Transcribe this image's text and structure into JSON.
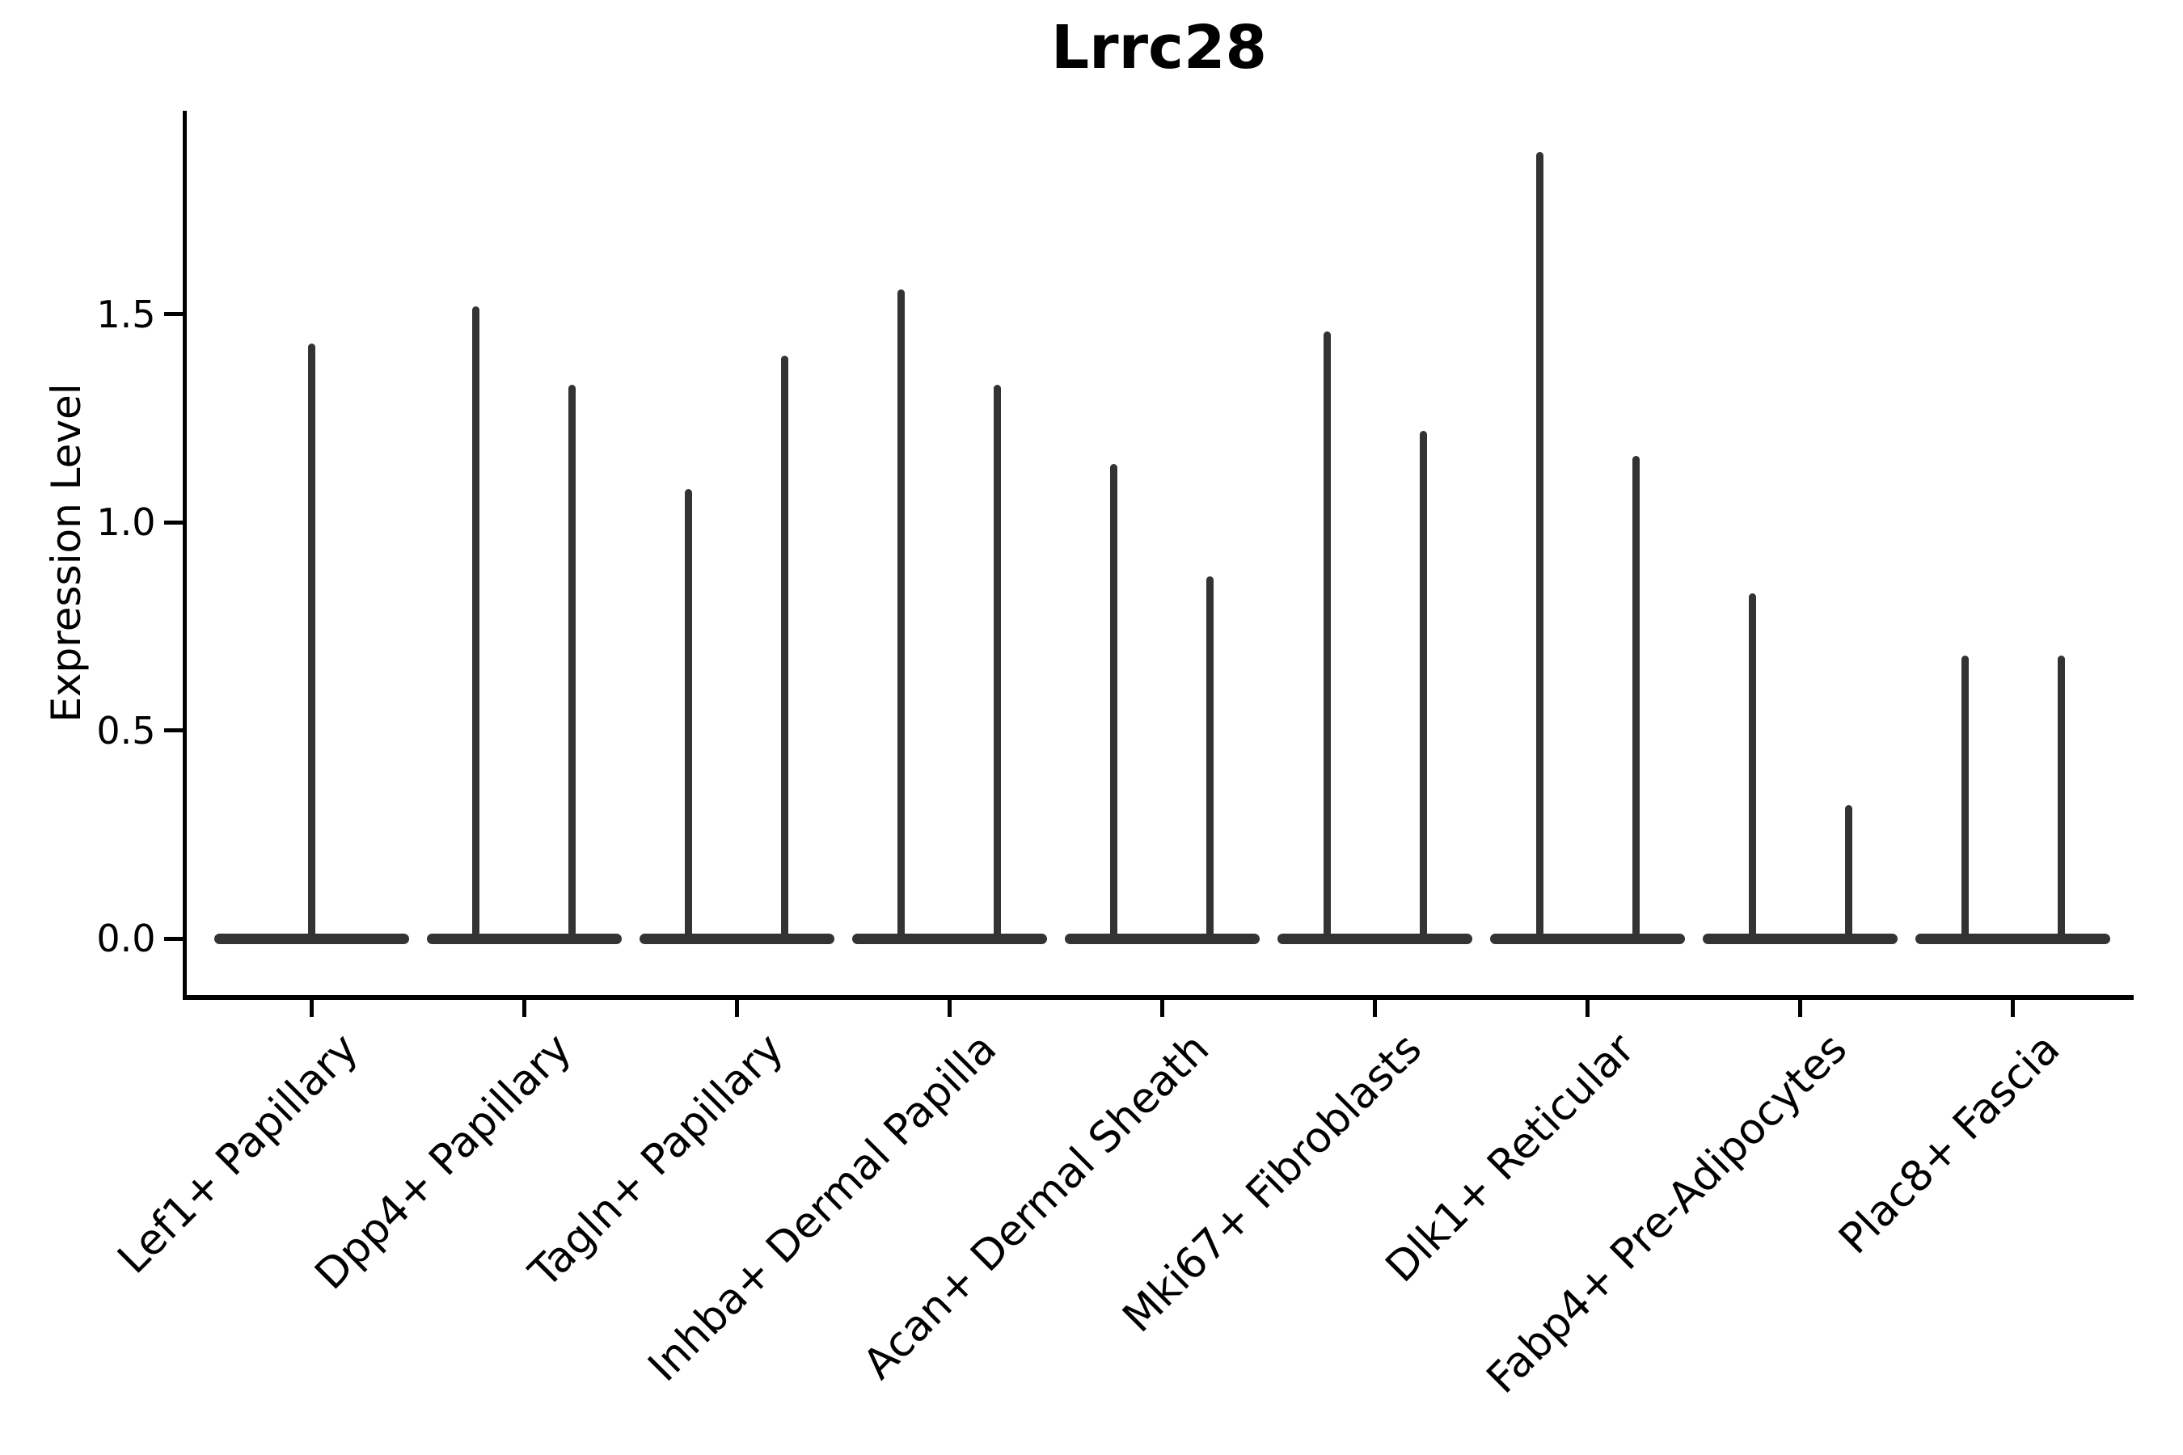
{
  "chart_data": {
    "type": "violin",
    "title": "Lrrc28",
    "ylabel": "Expression Level",
    "xlabel": "",
    "grid": false,
    "legend": null,
    "violin_color": "#333333",
    "axis_color": "#000000",
    "ylim": [
      -0.14,
      1.99
    ],
    "yticks": {
      "values": [
        0,
        0.5,
        1.0,
        1.5
      ],
      "labels": [
        "0.0",
        "0.5",
        "1.0",
        "1.5"
      ]
    },
    "categories": [
      "Lef1+ Papillary",
      "Dpp4+ Papillary",
      "Tagln+ Papillary",
      "Inhba+ Dermal Papilla",
      "Acan+ Dermal Sheath",
      "Mki67+ Fibroblasts",
      "Dlk1+ Reticular",
      "Fabp4+ Pre-Adipocytes",
      "Plac8+ Fascia"
    ],
    "violins": [
      {
        "category": "Lef1+ Papillary",
        "bulk_value": 0,
        "max_values": [
          1.43
        ]
      },
      {
        "category": "Dpp4+ Papillary",
        "bulk_value": 0,
        "max_values": [
          1.52,
          1.33
        ]
      },
      {
        "category": "Tagln+ Papillary",
        "bulk_value": 0,
        "max_values": [
          1.08,
          1.4
        ]
      },
      {
        "category": "Inhba+ Dermal Papilla",
        "bulk_value": 0,
        "max_values": [
          1.56,
          1.33
        ]
      },
      {
        "category": "Acan+ Dermal Sheath",
        "bulk_value": 0,
        "max_values": [
          1.14,
          0.87
        ]
      },
      {
        "category": "Mki67+ Fibroblasts",
        "bulk_value": 0,
        "max_values": [
          1.46,
          1.22
        ]
      },
      {
        "category": "Dlk1+ Reticular",
        "bulk_value": 0,
        "max_values": [
          1.89,
          1.16
        ]
      },
      {
        "category": "Fabp4+ Pre-Adipocytes",
        "bulk_value": 0,
        "max_values": [
          0.83,
          0.32
        ]
      },
      {
        "category": "Plac8+ Fascia",
        "bulk_value": 0,
        "max_values": [
          0.68,
          0.68
        ]
      }
    ]
  }
}
